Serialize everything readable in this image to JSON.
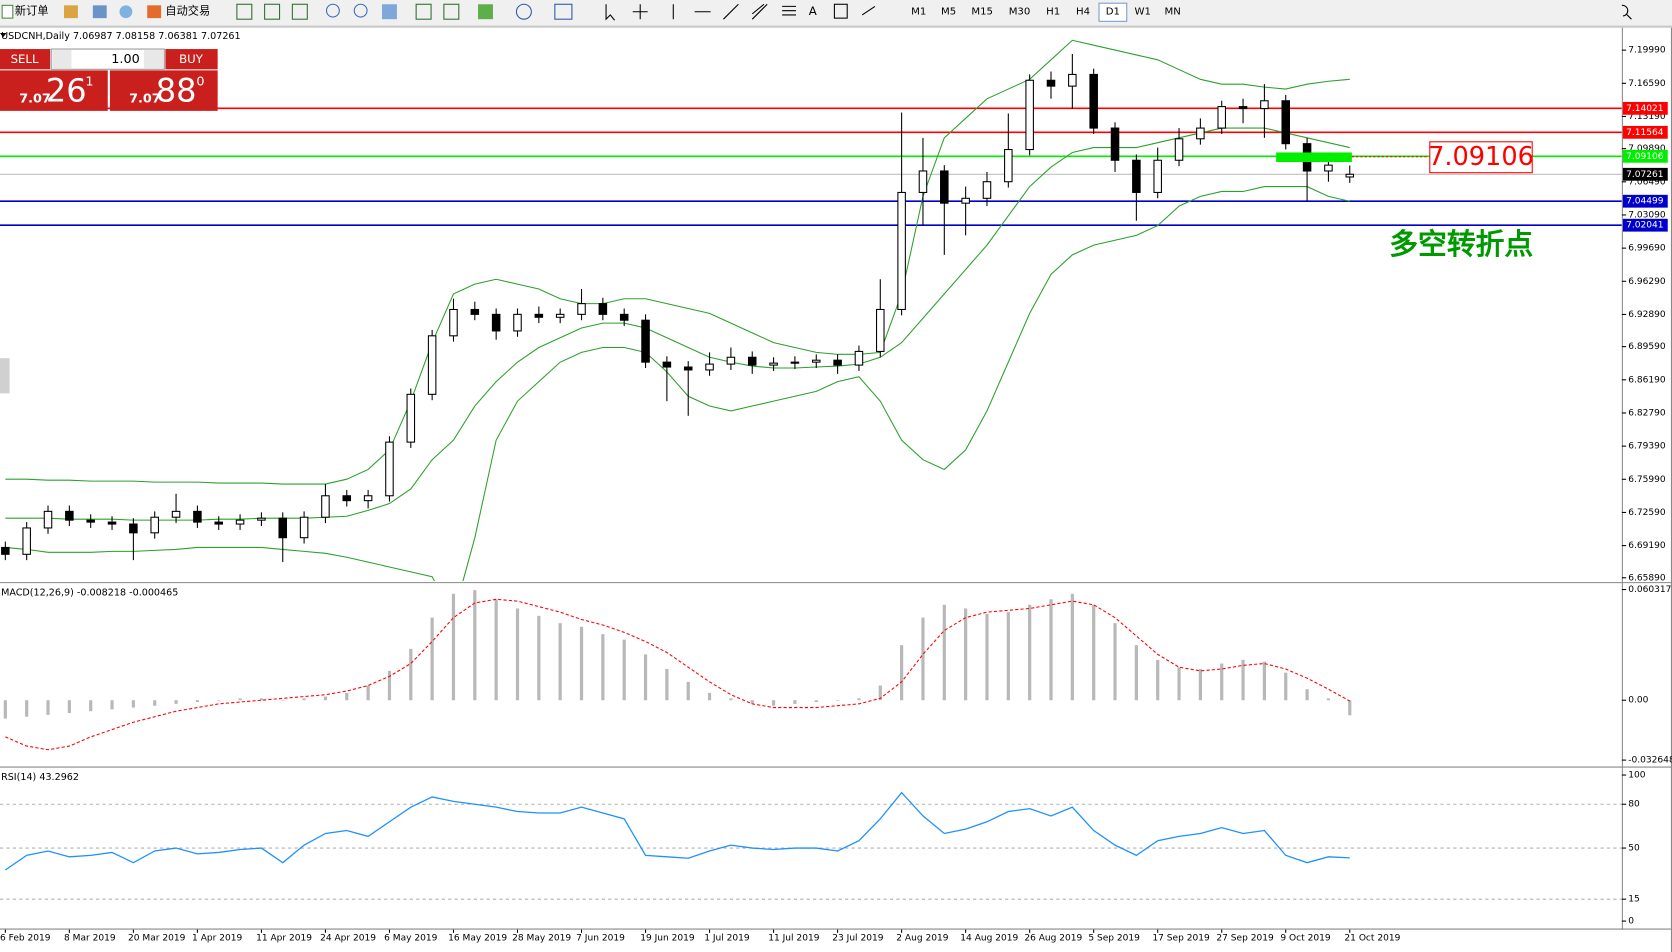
{
  "toolbar": {
    "new_order": "新订单",
    "auto_trading": "自动交易",
    "timeframes": [
      "M1",
      "M5",
      "M15",
      "M30",
      "H1",
      "H4",
      "D1",
      "W1",
      "MN"
    ],
    "active_timeframe": "D1"
  },
  "trade_panel": {
    "sell_label": "SELL",
    "buy_label": "BUY",
    "lot": "1.00",
    "sell_price": {
      "prefix": "7.07",
      "big": "26",
      "sup": "1"
    },
    "buy_price": {
      "prefix": "7.07",
      "big": "88",
      "sup": "0"
    }
  },
  "chart_data": [
    {
      "type": "candlestick",
      "title": "USDCNH,Daily",
      "categories": [
        "6 Feb 2019",
        null,
        null,
        "8 Mar 2019",
        null,
        null,
        "20 Mar 2019",
        null,
        null,
        "1 Apr 2019",
        null,
        null,
        "11 Apr 2019",
        null,
        null,
        "24 Apr 2019",
        null,
        null,
        "6 May 2019",
        null,
        null,
        "16 May 2019",
        null,
        null,
        "28 May 2019",
        null,
        null,
        "7 Jun 2019",
        null,
        null,
        "19 Jun 2019",
        null,
        null,
        "1 Jul 2019",
        null,
        null,
        "11 Jul 2019",
        null,
        null,
        "23 Jul 2019",
        null,
        null,
        "2 Aug 2019",
        null,
        null,
        "14 Aug 2019",
        null,
        null,
        "26 Aug 2019",
        null,
        null,
        "5 Sep 2019",
        null,
        null,
        "17 Sep 2019",
        null,
        null,
        "27 Sep 2019",
        null,
        null,
        "9 Oct 2019",
        null,
        null,
        "21 Oct 2019"
      ],
      "open": [
        6.69,
        6.683,
        6.71,
        6.727,
        6.718,
        6.716,
        6.714,
        6.705,
        6.721,
        6.727,
        6.716,
        6.714,
        6.718,
        6.72,
        6.7,
        6.721,
        6.743,
        6.738,
        6.743,
        6.798,
        6.847,
        6.907,
        6.934,
        6.929,
        6.912,
        6.929,
        6.926,
        6.929,
        6.94,
        6.929,
        6.923,
        6.88,
        6.875,
        6.872,
        6.878,
        6.885,
        6.877,
        6.879,
        6.88,
        6.882,
        6.877,
        6.891,
        6.934,
        7.054,
        7.076,
        7.043,
        7.048,
        7.065,
        7.098,
        7.169,
        7.163,
        7.175,
        7.12,
        7.087,
        7.054,
        7.087,
        7.109,
        7.12,
        7.142,
        7.14,
        7.148,
        7.104,
        7.076,
        7.06987
      ],
      "high": [
        6.696,
        6.716,
        6.733,
        6.733,
        6.724,
        6.722,
        6.72,
        6.727,
        6.745,
        6.733,
        6.722,
        6.724,
        6.726,
        6.726,
        6.727,
        6.755,
        6.749,
        6.749,
        6.804,
        6.853,
        6.913,
        6.945,
        6.942,
        6.935,
        6.935,
        6.937,
        6.935,
        6.955,
        6.946,
        6.935,
        6.929,
        6.886,
        6.881,
        6.89,
        6.895,
        6.891,
        6.885,
        6.886,
        6.888,
        6.888,
        6.897,
        6.965,
        7.136,
        7.11,
        7.082,
        7.06,
        7.075,
        7.135,
        7.175,
        7.178,
        7.196,
        7.181,
        7.126,
        7.093,
        7.1,
        7.12,
        7.13,
        7.148,
        7.15,
        7.165,
        7.154,
        7.11,
        7.095,
        7.08158
      ],
      "low": [
        6.677,
        6.677,
        6.704,
        6.712,
        6.71,
        6.708,
        6.677,
        6.699,
        6.715,
        6.71,
        6.708,
        6.708,
        6.712,
        6.675,
        6.694,
        6.715,
        6.732,
        6.73,
        6.737,
        6.792,
        6.841,
        6.901,
        6.923,
        6.903,
        6.906,
        6.92,
        6.92,
        6.923,
        6.923,
        6.917,
        6.874,
        6.84,
        6.825,
        6.866,
        6.872,
        6.868,
        6.871,
        6.873,
        6.874,
        6.868,
        6.871,
        6.885,
        6.928,
        7.02,
        6.99,
        7.01,
        7.04,
        7.059,
        7.092,
        7.15,
        7.14,
        7.114,
        7.075,
        7.025,
        7.048,
        7.081,
        7.103,
        7.114,
        7.125,
        7.11,
        7.098,
        7.045,
        7.065,
        7.06381
      ],
      "close": [
        6.683,
        6.71,
        6.727,
        6.718,
        6.716,
        6.714,
        6.705,
        6.721,
        6.727,
        6.716,
        6.714,
        6.718,
        6.72,
        6.7,
        6.721,
        6.743,
        6.738,
        6.743,
        6.798,
        6.847,
        6.907,
        6.934,
        6.929,
        6.912,
        6.929,
        6.926,
        6.929,
        6.94,
        6.929,
        6.923,
        6.88,
        6.875,
        6.872,
        6.878,
        6.885,
        6.877,
        6.879,
        6.88,
        6.882,
        6.877,
        6.891,
        6.934,
        7.054,
        7.076,
        7.043,
        7.048,
        7.065,
        7.098,
        7.169,
        7.163,
        7.175,
        7.12,
        7.087,
        7.054,
        7.087,
        7.109,
        7.12,
        7.142,
        7.14,
        7.148,
        7.104,
        7.076,
        7.082,
        7.07261
      ],
      "bands": {
        "color": "#2ca02c",
        "upper": [
          6.76,
          6.76,
          6.759,
          6.759,
          6.758,
          6.758,
          6.758,
          6.757,
          6.757,
          6.757,
          6.756,
          6.756,
          6.756,
          6.755,
          6.755,
          6.755,
          6.76,
          6.77,
          6.79,
          6.84,
          6.9,
          6.95,
          6.96,
          6.965,
          6.96,
          6.955,
          6.945,
          6.94,
          6.94,
          6.945,
          6.945,
          6.94,
          6.935,
          6.93,
          6.92,
          6.91,
          6.9,
          6.895,
          6.89,
          6.888,
          6.888,
          6.89,
          6.95,
          7.05,
          7.11,
          7.13,
          7.15,
          7.16,
          7.17,
          7.19,
          7.21,
          7.205,
          7.2,
          7.195,
          7.19,
          7.18,
          7.17,
          7.165,
          7.165,
          7.162,
          7.16,
          7.165,
          7.168,
          7.17
        ],
        "middle": [
          6.72,
          6.72,
          6.72,
          6.719,
          6.719,
          6.719,
          6.718,
          6.718,
          6.718,
          6.718,
          6.719,
          6.719,
          6.72,
          6.72,
          6.72,
          6.721,
          6.722,
          6.728,
          6.735,
          6.75,
          6.78,
          6.8,
          6.835,
          6.86,
          6.88,
          6.895,
          6.905,
          6.915,
          6.92,
          6.92,
          6.915,
          6.905,
          6.895,
          6.885,
          6.88,
          6.876,
          6.874,
          6.874,
          6.875,
          6.876,
          6.878,
          6.885,
          6.9,
          6.925,
          6.95,
          6.975,
          7.0,
          7.03,
          7.06,
          7.08,
          7.095,
          7.1,
          7.1,
          7.1,
          7.105,
          7.11,
          7.115,
          7.12,
          7.12,
          7.12,
          7.115,
          7.11,
          7.105,
          7.1
        ],
        "lower": [
          6.69,
          6.688,
          6.685,
          6.685,
          6.685,
          6.686,
          6.686,
          6.687,
          6.688,
          6.69,
          6.69,
          6.69,
          6.69,
          6.688,
          6.686,
          6.684,
          6.68,
          6.675,
          6.67,
          6.665,
          6.66,
          6.62,
          6.7,
          6.8,
          6.84,
          6.86,
          6.88,
          6.89,
          6.895,
          6.895,
          6.89,
          6.87,
          6.845,
          6.835,
          6.83,
          6.835,
          6.84,
          6.845,
          6.85,
          6.86,
          6.865,
          6.84,
          6.8,
          6.78,
          6.77,
          6.79,
          6.83,
          6.88,
          6.93,
          6.97,
          6.99,
          7.0,
          7.005,
          7.01,
          7.02,
          7.04,
          7.05,
          7.055,
          7.055,
          7.06,
          7.06,
          7.06,
          7.05,
          7.045
        ]
      },
      "hlines": [
        {
          "value": 7.14021,
          "color": "#ff0000"
        },
        {
          "value": 7.11564,
          "color": "#ff0000"
        },
        {
          "value": 7.09106,
          "color": "#00ee00"
        },
        {
          "value": 7.04499,
          "color": "#0000cc"
        },
        {
          "value": 7.02041,
          "color": "#0000cc"
        }
      ],
      "annotations": [
        {
          "text": "7.09106",
          "color": "#ff0000"
        },
        {
          "text": "多空转折点",
          "color": "#009900"
        }
      ],
      "ylim": [
        6.6556,
        7.2218
      ],
      "yticks": [
        {
          "value": 7.1999,
          "label": "7.19990"
        },
        {
          "value": 7.1659,
          "label": "7.16590"
        },
        {
          "value": 7.1319,
          "label": "7.13190"
        },
        {
          "value": 7.0989,
          "label": "7.09890"
        },
        {
          "value": 7.0649,
          "label": "7.06490"
        },
        {
          "value": 7.0309,
          "label": "7.03090"
        },
        {
          "value": 6.9969,
          "label": "6.99690"
        },
        {
          "value": 6.9629,
          "label": "6.96290"
        },
        {
          "value": 6.9289,
          "label": "6.92890"
        },
        {
          "value": 6.8959,
          "label": "6.89590"
        },
        {
          "value": 6.8619,
          "label": "6.86190"
        },
        {
          "value": 6.8279,
          "label": "6.82790"
        },
        {
          "value": 6.7939,
          "label": "6.79390"
        },
        {
          "value": 6.7599,
          "label": "6.75990"
        },
        {
          "value": 6.7259,
          "label": "6.72590"
        },
        {
          "value": 6.6919,
          "label": "6.69190"
        },
        {
          "value": 6.6589,
          "label": "6.65890"
        }
      ]
    },
    {
      "type": "macd",
      "title": "MACD(12,26,9)",
      "series": [
        {
          "style": "histogram",
          "color": "#b8b8b8",
          "values": [
            -0.01,
            -0.009,
            -0.008,
            -0.007,
            -0.006,
            -0.005,
            -0.004,
            -0.003,
            -0.002,
            -0.001,
            0,
            0.001,
            0.001,
            0,
            0.001,
            0.002,
            0.004,
            0.008,
            0.016,
            0.028,
            0.045,
            0.058,
            0.06,
            0.055,
            0.05,
            0.046,
            0.042,
            0.04,
            0.036,
            0.033,
            0.025,
            0.017,
            0.01,
            0.004,
            0.001,
            -0.002,
            -0.003,
            -0.002,
            -0.001,
            0,
            0.001,
            0.008,
            0.03,
            0.045,
            0.052,
            0.05,
            0.047,
            0.048,
            0.052,
            0.055,
            0.058,
            0.052,
            0.042,
            0.03,
            0.022,
            0.018,
            0.017,
            0.02,
            0.022,
            0.021,
            0.015,
            0.006,
            0.001,
            -0.008218
          ]
        },
        {
          "style": "dashed",
          "color": "#ff0000",
          "values": [
            -0.02,
            -0.025,
            -0.027,
            -0.025,
            -0.02,
            -0.016,
            -0.012,
            -0.009,
            -0.006,
            -0.004,
            -0.002,
            -0.001,
            0,
            0.001,
            0.002,
            0.003,
            0.005,
            0.008,
            0.013,
            0.02,
            0.032,
            0.045,
            0.053,
            0.055,
            0.054,
            0.051,
            0.048,
            0.044,
            0.041,
            0.037,
            0.032,
            0.026,
            0.018,
            0.01,
            0.003,
            -0.002,
            -0.004,
            -0.004,
            -0.004,
            -0.003,
            -0.002,
            0.001,
            0.01,
            0.025,
            0.038,
            0.045,
            0.048,
            0.049,
            0.05,
            0.052,
            0.054,
            0.052,
            0.045,
            0.035,
            0.025,
            0.018,
            0.016,
            0.017,
            0.019,
            0.02,
            0.017,
            0.012,
            0.006,
            -0.000465
          ]
        }
      ],
      "ylim": [
        -0.032648,
        0.060317
      ],
      "yticks": [
        0.060317,
        {
          "value": 0,
          "label": "0.00"
        },
        -0.032648
      ]
    },
    {
      "type": "rsi",
      "title": "RSI(14)",
      "color": "#1e90ff",
      "values": [
        35,
        45,
        48,
        44,
        45,
        47,
        40,
        48,
        50,
        46,
        47,
        49,
        50,
        40,
        52,
        60,
        62,
        58,
        68,
        78,
        85,
        82,
        80,
        78,
        75,
        74,
        74,
        78,
        74,
        70,
        45,
        44,
        43,
        48,
        52,
        50,
        49,
        50,
        50,
        48,
        55,
        70,
        88,
        72,
        60,
        63,
        68,
        75,
        77,
        72,
        78,
        62,
        52,
        45,
        55,
        58,
        60,
        64,
        60,
        62,
        45,
        40,
        44,
        43.2962
      ],
      "ylim": [
        0,
        100
      ],
      "yticks": [
        100,
        80,
        50,
        15,
        0
      ]
    }
  ]
}
